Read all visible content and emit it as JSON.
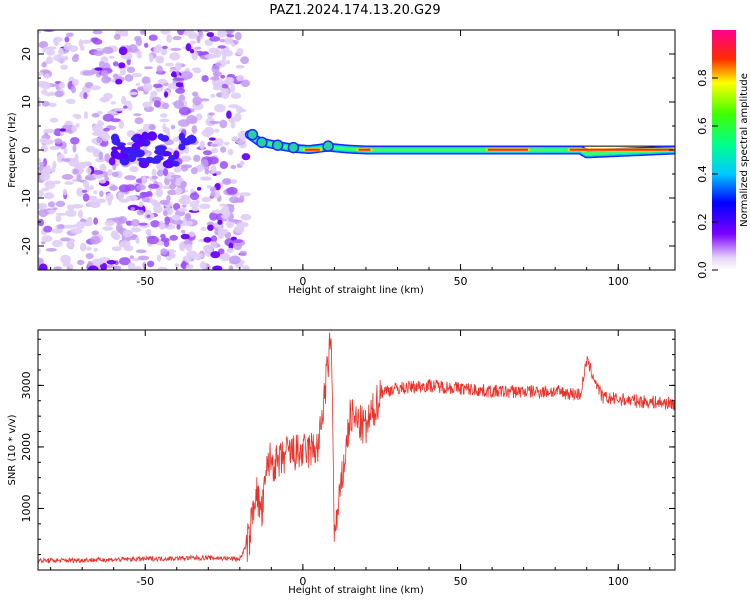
{
  "title": "PAZ1.2024.174.13.20.G29",
  "chart_data": [
    {
      "type": "heatmap",
      "xlabel": "Height of straight line (km)",
      "ylabel": "Frequency (Hz)",
      "xlim": [
        -84,
        118
      ],
      "ylim": [
        -25,
        25
      ],
      "xticks": [
        -50,
        0,
        50,
        100
      ],
      "yticks": [
        -20,
        -10,
        0,
        10,
        20
      ],
      "noise_region_x": [
        -84,
        -18
      ],
      "signal_line": [
        {
          "x": -17,
          "y": 3.2
        },
        {
          "x": -14,
          "y": 1.8
        },
        {
          "x": -10,
          "y": 1.2
        },
        {
          "x": -6,
          "y": 0.7
        },
        {
          "x": -2,
          "y": 0.3
        },
        {
          "x": 2,
          "y": 0.1
        },
        {
          "x": 8,
          "y": 0.6
        },
        {
          "x": 14,
          "y": 0.2
        },
        {
          "x": 20,
          "y": 0.0
        },
        {
          "x": 40,
          "y": 0.0
        },
        {
          "x": 88,
          "y": 0.0
        },
        {
          "x": 90,
          "y": -0.8
        },
        {
          "x": 118,
          "y": 0.0
        }
      ],
      "colorbar": {
        "label": "Normalized spectral amplitude",
        "range": [
          0,
          1
        ],
        "ticks": [
          "0.0",
          "0.2",
          "0.4",
          "0.6",
          "0.8"
        ]
      }
    },
    {
      "type": "line",
      "xlabel": "Height of straight line (km)",
      "ylabel": "SNR (10 * v/v)",
      "xlim": [
        -84,
        118
      ],
      "ylim": [
        0,
        3900
      ],
      "xticks": [
        -50,
        0,
        50,
        100
      ],
      "yticks": [
        1000,
        2000,
        3000
      ],
      "color": "#e8322a",
      "x": [
        -84,
        -70,
        -50,
        -30,
        -20,
        -17,
        -15,
        -13,
        -11,
        -8,
        -5,
        0,
        5,
        9,
        10,
        15,
        20,
        25,
        30,
        40,
        50,
        60,
        70,
        80,
        88,
        90,
        95,
        105,
        118
      ],
      "y": [
        150,
        160,
        180,
        200,
        180,
        500,
        1300,
        900,
        1800,
        1700,
        1900,
        1900,
        2000,
        3800,
        500,
        2500,
        2300,
        2900,
        2950,
        3000,
        2950,
        2900,
        2900,
        2900,
        2850,
        3400,
        2800,
        2750,
        2700
      ]
    }
  ]
}
